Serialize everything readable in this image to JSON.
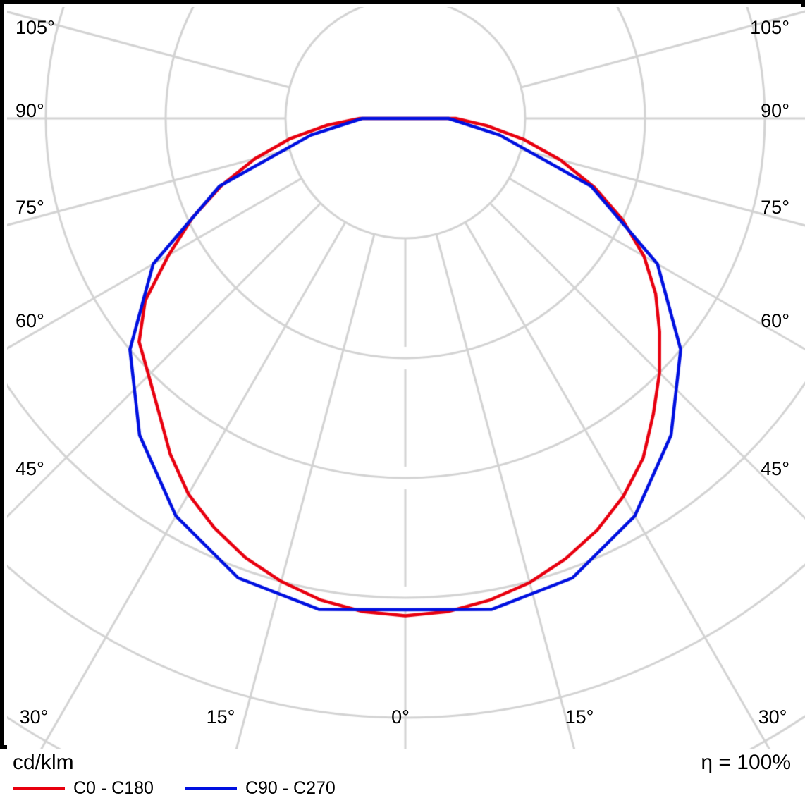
{
  "chart_data": {
    "type": "line",
    "subtype": "polar-photometric-luminous-intensity",
    "unit_label": "cd/klm",
    "efficiency_label": "η = 100%",
    "angle_step_deg": 15,
    "axis_labels": {
      "left": [
        "105°",
        "90°",
        "75°",
        "60°",
        "45°"
      ],
      "right": [
        "105°",
        "90°",
        "75°",
        "60°",
        "45°"
      ],
      "bottom": [
        "30°",
        "15°",
        "0°",
        "15°",
        "30°"
      ]
    },
    "radial_axis": {
      "tick_step_cd_klm": 100,
      "ring_values": [
        100,
        200,
        300,
        400,
        500
      ],
      "value_labels_visible": false
    },
    "grid": {
      "on": true,
      "rays_start_at_ring": 1
    },
    "colors": {
      "grid": "#d3d3d3",
      "frame": "#000000",
      "c0_c180": "#e8000f",
      "c90_c270": "#0010e0"
    },
    "series": [
      {
        "name": "C0 - C180",
        "color": "#e8000f",
        "gamma_deg": [
          -90,
          -85,
          -80,
          -75,
          -70,
          -65,
          -60,
          -55,
          -50,
          -45,
          -40,
          -35,
          -30,
          -25,
          -20,
          -15,
          -10,
          -5,
          0,
          5,
          10,
          15,
          20,
          25,
          30,
          35,
          40,
          45,
          50,
          55,
          60,
          65,
          70,
          75,
          80,
          85,
          90
        ],
        "values_cd_klm": [
          38,
          66,
          98,
          130,
          163,
          196,
          228,
          265,
          290,
          303,
          320,
          342,
          362,
          377,
          390,
          400,
          408,
          413,
          415,
          413,
          408,
          401,
          391,
          379,
          364,
          346,
          322,
          300,
          277,
          255,
          230,
          200,
          168,
          134,
          100,
          68,
          42
        ]
      },
      {
        "name": "C90 - C270",
        "color": "#0010e0",
        "gamma_deg": [
          -90,
          -80,
          -70,
          -60,
          -50,
          -40,
          -30,
          -20,
          -10,
          0,
          10,
          20,
          30,
          40,
          50,
          60,
          70,
          80,
          90
        ],
        "values_cd_klm": [
          36,
          80,
          165,
          243,
          300,
          345,
          383,
          408,
          416,
          410,
          416,
          408,
          383,
          345,
          300,
          243,
          165,
          80,
          36
        ]
      }
    ],
    "legend": {
      "position": "bottom-left",
      "entries": [
        {
          "label": "C0 - C180",
          "color": "#e8000f"
        },
        {
          "label": "C90 - C270",
          "color": "#0010e0"
        }
      ]
    }
  }
}
